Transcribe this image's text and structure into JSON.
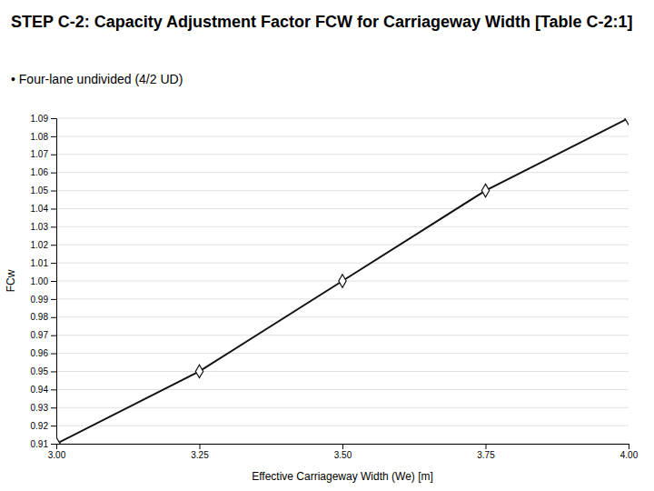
{
  "chart_data": {
    "type": "line",
    "title": "STEP C-2: Capacity Adjustment Factor FCW for Carriageway Width [Table C-2:1]",
    "subtitle": "• Four-lane undivided (4/2 UD)",
    "xlabel": "Effective Carriageway Width (We) [m]",
    "ylabel": "FCw",
    "x": [
      3.0,
      3.25,
      3.5,
      3.75,
      4.0
    ],
    "values": [
      0.91,
      0.95,
      1.0,
      1.05,
      1.09
    ],
    "color": "#111111",
    "marker": "diamond",
    "line_style": "solid",
    "xlim": [
      3.0,
      4.0
    ],
    "ylim": [
      0.91,
      1.09
    ],
    "xticks": [
      {
        "value": 3,
        "label": "3.00"
      },
      3.25,
      {
        "value": 3.5,
        "label": "3.50"
      },
      3.75,
      {
        "value": 4,
        "label": "4.00"
      }
    ],
    "yticks": [
      0.91,
      0.92,
      0.93,
      0.94,
      0.95,
      0.96,
      0.97,
      0.98,
      0.99,
      {
        "value": 1,
        "label": "1.00"
      },
      1.01,
      1.02,
      1.03,
      1.04,
      1.05,
      1.06,
      1.07,
      1.08,
      1.09
    ],
    "grid": "y"
  }
}
